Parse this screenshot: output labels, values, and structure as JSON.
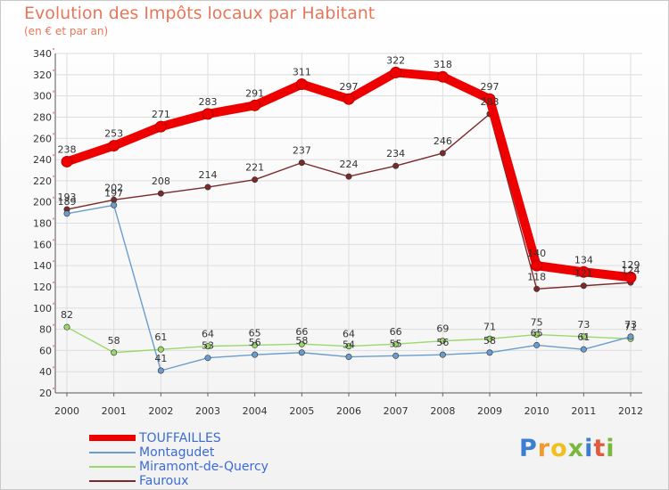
{
  "title": "Evolution des Impôts locaux par Habitant",
  "subtitle": "(en € et par an)",
  "logo": {
    "text": "Proxiti",
    "letters": [
      "P",
      "r",
      "o",
      "x",
      "i",
      "t",
      "i"
    ],
    "colors": [
      "#3d7fcf",
      "#f29a2e",
      "#f0c020",
      "#7ab83d",
      "#3d7fcf",
      "#e25b3b",
      "#7ab83d"
    ]
  },
  "chart_data": {
    "type": "line",
    "title": "Evolution des Impôts locaux par Habitant",
    "subtitle": "(en € et par an)",
    "xlabel": "",
    "ylabel": "",
    "x": [
      "2000",
      "2001",
      "2002",
      "2003",
      "2004",
      "2005",
      "2006",
      "2007",
      "2008",
      "2009",
      "2010",
      "2011",
      "2012"
    ],
    "ylim": [
      20,
      340
    ],
    "yticks": [
      20,
      40,
      60,
      80,
      100,
      120,
      140,
      160,
      180,
      200,
      220,
      240,
      260,
      280,
      300,
      320,
      340
    ],
    "grid": true,
    "legend_position": "bottom-left",
    "series": [
      {
        "name": "TOUFFAILLES",
        "color": "#ee0000",
        "values": [
          238,
          253,
          271,
          283,
          291,
          311,
          297,
          322,
          318,
          297,
          140,
          134,
          129
        ]
      },
      {
        "name": "Montagudet",
        "color": "#6a9ccd",
        "values": [
          189,
          197,
          41,
          53,
          56,
          58,
          54,
          55,
          56,
          58,
          65,
          61,
          73
        ]
      },
      {
        "name": "Miramont-de-Quercy",
        "color": "#9ad86b",
        "values": [
          82,
          58,
          61,
          64,
          65,
          66,
          64,
          66,
          69,
          71,
          75,
          73,
          71
        ]
      },
      {
        "name": "Fauroux",
        "color": "#7a2a2a",
        "values": [
          193,
          202,
          208,
          214,
          221,
          237,
          224,
          234,
          246,
          283,
          118,
          121,
          124
        ]
      }
    ]
  }
}
